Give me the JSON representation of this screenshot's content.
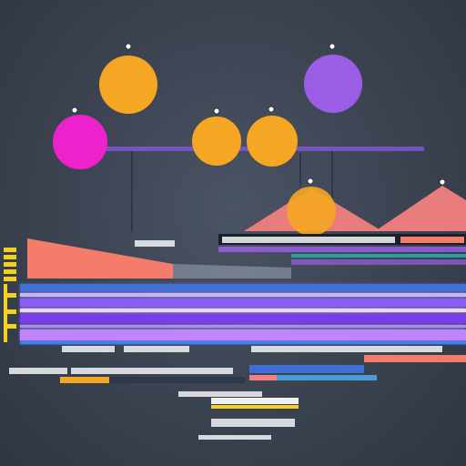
{
  "colors": {
    "background": "#3a4250",
    "orange": "#f5a623",
    "purple": "#9b5de5",
    "magenta": "#ee22cc",
    "salmon": "#f47c6a",
    "pink": "#f2807e",
    "violet_bar": "#a78bfa",
    "blue_bar": "#3b6fd0",
    "yellow": "#f5d020",
    "teal": "#2aa198",
    "rule": "#e8eaee"
  },
  "icons": [
    "circle-node",
    "triangle-peak",
    "bar-strip"
  ],
  "content_note_free": true
}
